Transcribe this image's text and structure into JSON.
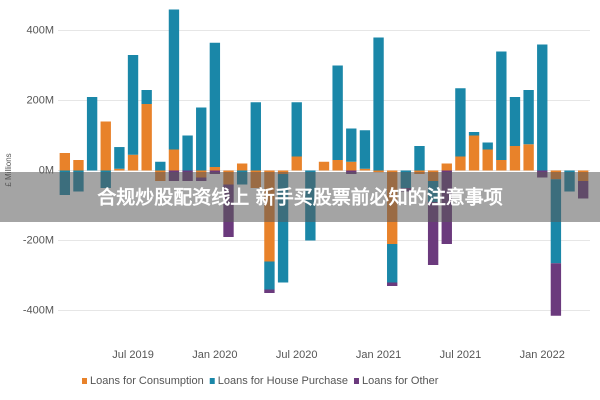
{
  "chart_data": {
    "type": "bar",
    "ylabel": "£ Millions",
    "categories": [
      null,
      null,
      null,
      null,
      null,
      "Jul 2019",
      null,
      null,
      null,
      null,
      null,
      "Jan 2020",
      null,
      null,
      null,
      null,
      null,
      "Jul 2020",
      null,
      null,
      null,
      null,
      null,
      "Jan 2021",
      null,
      null,
      null,
      null,
      null,
      "Jul 2021",
      null,
      null,
      null,
      null,
      null,
      "Jan 2022",
      null,
      null,
      null
    ],
    "series": [
      {
        "name": "Loans for Consumption",
        "color": "#e8822a",
        "values": [
          50,
          30,
          0,
          140,
          5,
          45,
          190,
          -30,
          60,
          0,
          -20,
          10,
          -40,
          20,
          -50,
          -260,
          -10,
          40,
          0,
          25,
          30,
          25,
          5,
          -5,
          -210,
          0,
          -10,
          -30,
          20,
          40,
          100,
          60,
          30,
          70,
          75,
          0,
          -25,
          0,
          -30
        ]
      },
      {
        "name": "Loans for House Purchase",
        "color": "#1a87a8",
        "values": [
          -70,
          -60,
          210,
          -50,
          62,
          285,
          40,
          25,
          400,
          100,
          180,
          355,
          0,
          -40,
          195,
          -80,
          -310,
          155,
          -200,
          0,
          270,
          95,
          110,
          380,
          -110,
          -50,
          70,
          -60,
          0,
          195,
          10,
          20,
          310,
          140,
          155,
          360,
          -240,
          -60,
          0
        ]
      },
      {
        "name": "Loans for Other",
        "color": "#6b3a7d",
        "values": [
          0,
          0,
          0,
          0,
          0,
          0,
          0,
          0,
          -30,
          -30,
          -10,
          -10,
          -150,
          0,
          0,
          -10,
          0,
          0,
          0,
          0,
          0,
          -10,
          0,
          0,
          -10,
          -10,
          0,
          -180,
          -210,
          0,
          0,
          0,
          0,
          0,
          0,
          -20,
          -150,
          0,
          -50
        ]
      }
    ],
    "ylim": [
      -470,
      470
    ],
    "yticks": [
      {
        "value": 400,
        "label": "400M"
      },
      {
        "value": 200,
        "label": "200M"
      },
      {
        "value": 0,
        "label": "0M"
      },
      {
        "value": -200,
        "label": "-200M"
      },
      {
        "value": -400,
        "label": "-400M"
      }
    ],
    "grid": true,
    "legend": "bottom"
  },
  "banner": {
    "text": "合规炒股配资线上 新手买股票前必知的注意事项"
  }
}
